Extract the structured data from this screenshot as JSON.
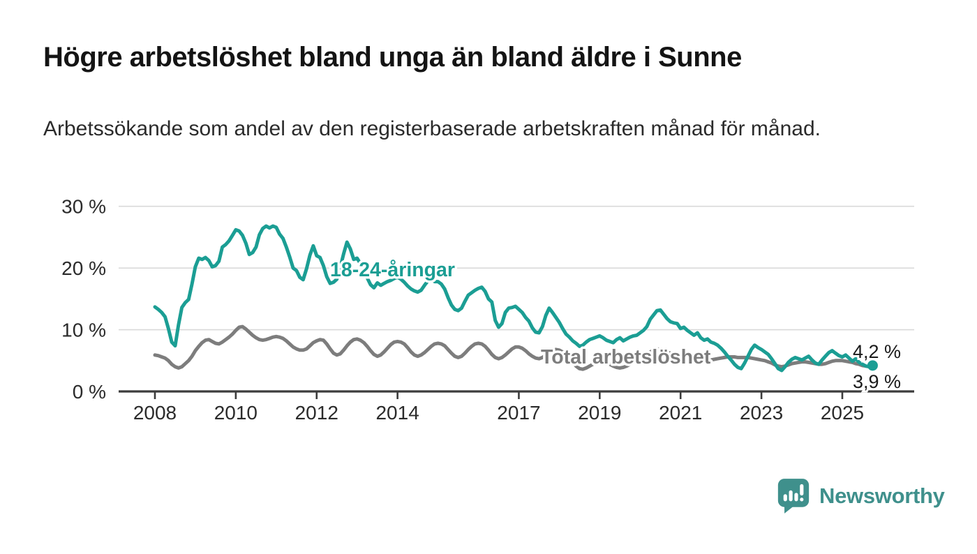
{
  "title": "Högre arbetslöshet bland unga än bland äldre i Sunne",
  "subtitle": "Arbetssökande som andel av den registerbaserade arbetskraften månad för månad.",
  "branding": {
    "logo_text": "Newsworthy",
    "logo_icon": "newsworthy-chart-bubble-icon",
    "logo_color": "#3f908c"
  },
  "chart_data": {
    "type": "line",
    "frequency": "monthly",
    "x_start": "2008-01",
    "x_end": "2025-10",
    "grid": "horizontal",
    "ylim": [
      0,
      32
    ],
    "colors": {
      "axis": "#3c3c3c",
      "gridline": "#d9d9d9",
      "tick_text": "#2b2b2b",
      "end_label_text": "#1a1a1a"
    },
    "y_ticks": [
      {
        "value": 0,
        "label": "0 %"
      },
      {
        "value": 10,
        "label": "10 %"
      },
      {
        "value": 20,
        "label": "20 %"
      },
      {
        "value": 30,
        "label": "30 %"
      }
    ],
    "x_ticks": [
      {
        "year": 2008,
        "label": "2008"
      },
      {
        "year": 2010,
        "label": "2010"
      },
      {
        "year": 2012,
        "label": "2012"
      },
      {
        "year": 2014,
        "label": "2014"
      },
      {
        "year": 2017,
        "label": "2017"
      },
      {
        "year": 2019,
        "label": "2019"
      },
      {
        "year": 2021,
        "label": "2021"
      },
      {
        "year": 2023,
        "label": "2023"
      },
      {
        "year": 2025,
        "label": "2025"
      }
    ],
    "series": [
      {
        "name": "18-24-åringar",
        "color": "#1b9e94",
        "end_label": "4,2 %",
        "end_value": 4.2,
        "end_dot": true,
        "values": [
          13.7,
          13.3,
          12.8,
          12.1,
          10.2,
          8.0,
          7.4,
          10.8,
          13.6,
          14.4,
          14.9,
          17.4,
          20.2,
          21.6,
          21.4,
          21.7,
          21.2,
          20.2,
          20.4,
          21.1,
          23.4,
          23.8,
          24.4,
          25.3,
          26.2,
          26.0,
          25.3,
          24.0,
          22.2,
          22.5,
          23.4,
          25.4,
          26.4,
          26.8,
          26.5,
          26.8,
          26.6,
          25.5,
          24.8,
          23.4,
          21.8,
          20.0,
          19.6,
          18.5,
          18.1,
          19.9,
          22.1,
          23.6,
          22.0,
          21.7,
          20.4,
          18.6,
          17.5,
          17.7,
          18.2,
          20.1,
          22.3,
          24.2,
          23.1,
          21.4,
          21.6,
          20.7,
          19.4,
          18.4,
          17.3,
          16.8,
          17.6,
          17.2,
          17.5,
          17.8,
          18.0,
          18.3,
          18.5,
          18.2,
          17.7,
          17.1,
          16.6,
          16.3,
          16.1,
          16.4,
          17.2,
          17.9,
          18.1,
          17.8,
          17.8,
          17.4,
          16.6,
          15.2,
          14.0,
          13.3,
          13.1,
          13.5,
          14.6,
          15.6,
          16.0,
          16.4,
          16.7,
          16.9,
          16.2,
          15.0,
          14.5,
          11.5,
          10.4,
          11.0,
          12.8,
          13.5,
          13.6,
          13.8,
          13.3,
          12.8,
          12.0,
          11.4,
          10.3,
          9.6,
          9.5,
          10.5,
          12.3,
          13.5,
          12.8,
          12.0,
          11.2,
          10.2,
          9.3,
          8.8,
          8.2,
          7.8,
          7.3,
          7.5,
          8.0,
          8.4,
          8.6,
          8.8,
          9.0,
          8.7,
          8.3,
          8.1,
          7.9,
          8.4,
          8.7,
          8.2,
          8.5,
          8.8,
          9.0,
          9.1,
          9.5,
          9.9,
          10.5,
          11.7,
          12.4,
          13.1,
          13.2,
          12.5,
          11.8,
          11.3,
          11.1,
          11.0,
          10.2,
          10.4,
          9.9,
          9.5,
          9.1,
          9.5,
          8.7,
          8.3,
          8.5,
          8.0,
          7.8,
          7.5,
          7.0,
          6.4,
          5.7,
          5.1,
          4.4,
          3.9,
          3.7,
          4.6,
          5.7,
          6.8,
          7.5,
          7.1,
          6.8,
          6.4,
          6.0,
          5.3,
          4.5,
          3.7,
          3.4,
          4.0,
          4.7,
          5.2,
          5.5,
          5.3,
          5.1,
          5.4,
          5.7,
          5.1,
          4.6,
          4.4,
          5.1,
          5.7,
          6.3,
          6.6,
          6.2,
          5.8,
          5.6,
          5.9,
          5.4,
          4.9,
          5.3,
          4.7,
          4.4,
          4.1,
          4.0,
          4.2
        ]
      },
      {
        "name": "Total arbetslöshet",
        "color": "#7d7d7d",
        "end_label": "3,9 %",
        "end_value": 3.9,
        "end_dot": false,
        "values": [
          5.9,
          5.8,
          5.6,
          5.4,
          5.0,
          4.4,
          4.0,
          3.8,
          4.0,
          4.5,
          5.0,
          5.7,
          6.6,
          7.3,
          7.9,
          8.3,
          8.4,
          8.1,
          7.8,
          7.7,
          8.0,
          8.4,
          8.8,
          9.3,
          9.9,
          10.4,
          10.5,
          10.1,
          9.6,
          9.1,
          8.7,
          8.4,
          8.3,
          8.4,
          8.6,
          8.8,
          8.9,
          8.8,
          8.6,
          8.2,
          7.7,
          7.2,
          6.9,
          6.7,
          6.7,
          6.9,
          7.4,
          7.9,
          8.2,
          8.4,
          8.3,
          7.7,
          6.9,
          6.2,
          5.9,
          6.1,
          6.7,
          7.4,
          8.0,
          8.4,
          8.5,
          8.3,
          7.9,
          7.3,
          6.6,
          6.0,
          5.7,
          5.9,
          6.4,
          7.0,
          7.6,
          8.0,
          8.1,
          8.0,
          7.7,
          7.1,
          6.4,
          5.9,
          5.7,
          5.9,
          6.3,
          6.8,
          7.3,
          7.7,
          7.8,
          7.7,
          7.4,
          6.8,
          6.2,
          5.7,
          5.5,
          5.7,
          6.2,
          6.8,
          7.3,
          7.7,
          7.8,
          7.7,
          7.3,
          6.7,
          6.0,
          5.5,
          5.3,
          5.5,
          5.9,
          6.4,
          6.9,
          7.2,
          7.2,
          7.0,
          6.6,
          6.1,
          5.7,
          5.4,
          5.3,
          5.5,
          5.9,
          6.3,
          6.6,
          6.8,
          6.7,
          6.4,
          5.9,
          5.3,
          4.7,
          4.1,
          3.7,
          3.6,
          3.8,
          4.1,
          4.4,
          4.7,
          5.0,
          4.9,
          4.7,
          4.4,
          4.1,
          3.9,
          3.8,
          3.9,
          4.1,
          4.4,
          4.7,
          5.0,
          5.3,
          5.5,
          5.9,
          6.4,
          6.7,
          6.9,
          6.8,
          6.6,
          6.4,
          6.2,
          6.1,
          6.1,
          6.2,
          6.2,
          6.1,
          5.9,
          5.7,
          5.5,
          5.3,
          5.2,
          5.1,
          5.1,
          5.2,
          5.3,
          5.4,
          5.5,
          5.6,
          5.6,
          5.6,
          5.5,
          5.5,
          5.5,
          5.5,
          5.4,
          5.3,
          5.2,
          5.1,
          5.0,
          4.8,
          4.6,
          4.3,
          4.1,
          4.0,
          4.1,
          4.3,
          4.5,
          4.6,
          4.7,
          4.8,
          4.8,
          4.7,
          4.6,
          4.5,
          4.4,
          4.4,
          4.5,
          4.7,
          4.9,
          5.0,
          5.0,
          5.0,
          4.9,
          4.8,
          4.7,
          4.5,
          4.4,
          4.2,
          4.1,
          4.0,
          3.9
        ]
      }
    ]
  }
}
